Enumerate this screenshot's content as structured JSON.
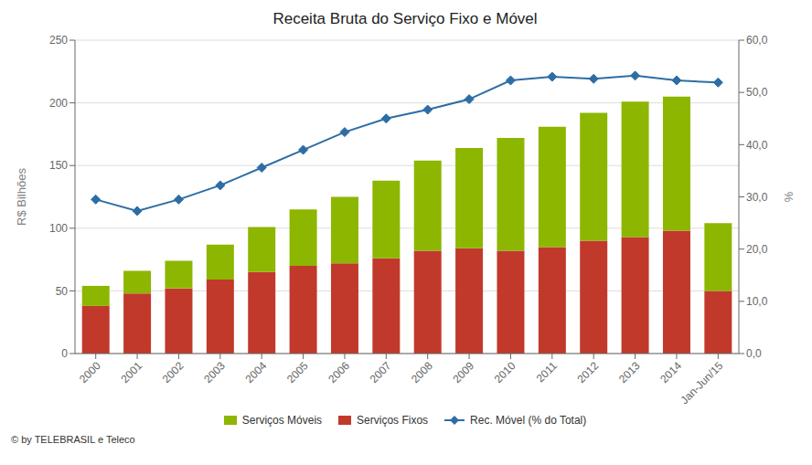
{
  "chart_data": {
    "type": "bar",
    "title": "Receita Bruta do Serviço Fixo e Móvel",
    "ylabel": "R$ Bilhões",
    "y2label": "%",
    "annotations": [
      "© by TELEBRASIL e Teleco"
    ],
    "categories": [
      "2000",
      "2001",
      "2002",
      "2003",
      "2004",
      "2005",
      "2006",
      "2007",
      "2008",
      "2009",
      "2010",
      "2011",
      "2012",
      "2013",
      "2014",
      "Jan-Jun/15"
    ],
    "stacked": true,
    "grid": true,
    "legend": "bottom",
    "ylim": [
      0,
      250
    ],
    "yticks": [
      0,
      50,
      100,
      150,
      200,
      250
    ],
    "y2lim": [
      0,
      60
    ],
    "y2ticks": [
      {
        "value": 0,
        "label": "0,0"
      },
      {
        "value": 10,
        "label": "10,0"
      },
      {
        "value": 20,
        "label": "20,0"
      },
      {
        "value": 30,
        "label": "30,0"
      },
      {
        "value": 40,
        "label": "40,0"
      },
      {
        "value": 50,
        "label": "50,0"
      },
      {
        "value": 60,
        "label": "60,0"
      }
    ],
    "series": [
      {
        "name": "Serviços Fixos",
        "type": "bar",
        "color": "#C1392B",
        "values": [
          38,
          48,
          52,
          59,
          65,
          70,
          72,
          76,
          82,
          84,
          82,
          85,
          90,
          93,
          98,
          50
        ]
      },
      {
        "name": "Serviços Móveis",
        "type": "bar",
        "color": "#8DB600",
        "values": [
          16,
          18,
          22,
          28,
          36,
          45,
          53,
          62,
          72,
          80,
          90,
          96,
          102,
          108,
          107,
          54
        ]
      },
      {
        "name": "Rec. Móvel (% do Total)",
        "type": "line",
        "axis": "y2",
        "color": "#2E6DA4",
        "marker": "diamond",
        "values": [
          29.5,
          27.3,
          29.5,
          32.2,
          35.6,
          39.0,
          42.4,
          45.0,
          46.7,
          48.7,
          52.3,
          53.0,
          52.6,
          53.2,
          52.3,
          51.9
        ]
      }
    ]
  }
}
